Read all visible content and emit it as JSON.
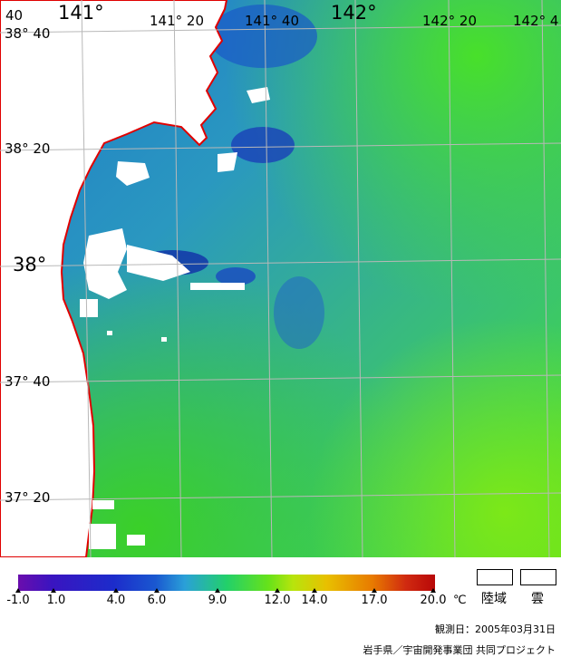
{
  "map": {
    "lon_labels": [
      "141°",
      "141° 20",
      "141° 40",
      "142°",
      "142° 20",
      "142° 4"
    ],
    "lat_labels": [
      "38° 40",
      "38° 20",
      "38°",
      "37° 40",
      "37° 20"
    ],
    "corner_label": "40"
  },
  "colorbar": {
    "ticks": [
      "-1.0",
      "1.0",
      "4.0",
      "6.0",
      "9.0",
      "12.0",
      "14.0",
      "17.0",
      "20.0"
    ],
    "unit": "℃",
    "colors": [
      "#6a0dad",
      "#2a1fb8",
      "#1a4fd0",
      "#2e8fe0",
      "#22c0a0",
      "#33dd22",
      "#99e81a",
      "#e8d000",
      "#e88000",
      "#cc1010"
    ]
  },
  "legend": {
    "land_label": "陸域",
    "cloud_label": "雲"
  },
  "observation_date": "観測日：2005年03月31日",
  "credit": "岩手県／宇宙開発事業団 共同プロジェクト"
}
